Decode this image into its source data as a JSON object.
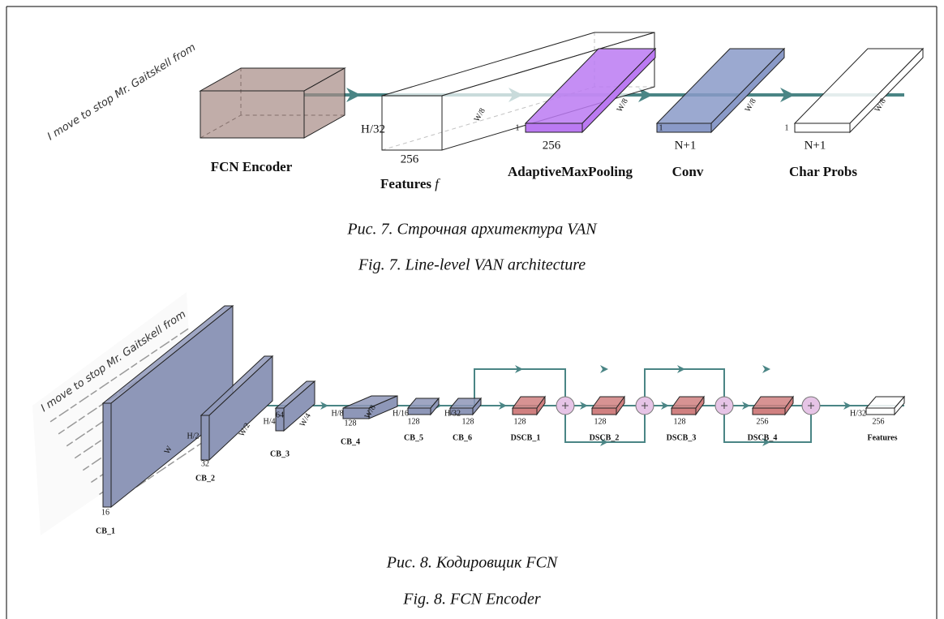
{
  "figure_7": {
    "input_text": "I move to stop Mr. Gaitskell from",
    "blocks": [
      {
        "name": "FCN Encoder"
      },
      {
        "name": "Features",
        "symbol": "f",
        "channels": "256",
        "height": "H/32",
        "width": "W/8"
      },
      {
        "name": "AdaptiveMaxPooling",
        "channels": "256",
        "height": "1",
        "width": "W/8"
      },
      {
        "name": "Conv",
        "channels": "N+1",
        "height": "1",
        "width": "W/8"
      },
      {
        "name": "Char Probs",
        "channels": "N+1",
        "height": "1",
        "width": "W/8"
      }
    ],
    "caption_ru": "Рис. 7. Строчная архитектура VAN",
    "caption_en": "Fig. 7. Line-level VAN architecture"
  },
  "figure_8": {
    "input_text": "I move to stop Mr. Gaitskell from",
    "blocks": [
      {
        "name": "CB_1",
        "channels": "16",
        "width": "W"
      },
      {
        "name": "CB_2",
        "channels": "32",
        "height": "H/2",
        "width": "W/2"
      },
      {
        "name": "CB_3",
        "channels": "64",
        "height": "H/4",
        "width": "W/4"
      },
      {
        "name": "CB_4",
        "channels": "128",
        "height": "H/8",
        "width": "W/8"
      },
      {
        "name": "CB_5",
        "channels": "128",
        "height": "H/16"
      },
      {
        "name": "CB_6",
        "channels": "128",
        "height": "H/32"
      },
      {
        "name": "DSCB_1",
        "channels": "128"
      },
      {
        "name": "DSCB_2",
        "channels": "128"
      },
      {
        "name": "DSCB_3",
        "channels": "128"
      },
      {
        "name": "DSCB_4",
        "channels": "256"
      },
      {
        "name": "Features",
        "channels": "256",
        "height": "H/32"
      }
    ],
    "caption_ru": "Рис. 8. Кодировщик FCN",
    "caption_en": "Fig. 8. FCN Encoder"
  }
}
